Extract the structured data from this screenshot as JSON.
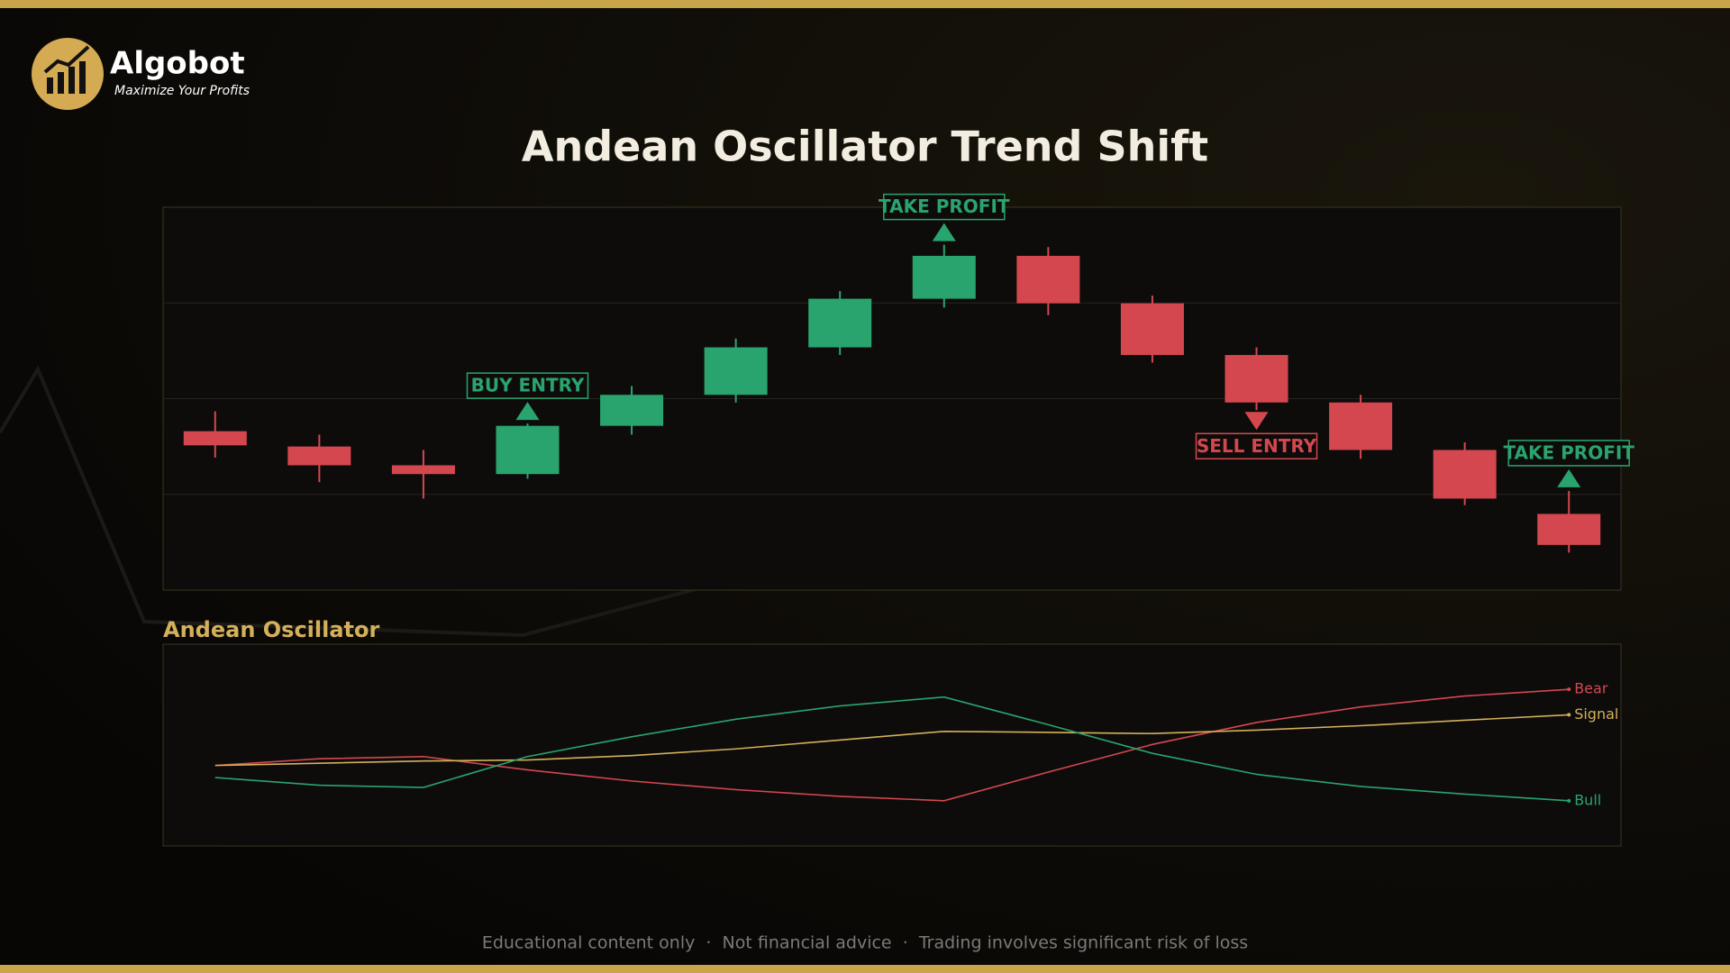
{
  "brand": {
    "name": "Algobot",
    "tagline": "Maximize Your Profits"
  },
  "title": "Andean Oscillator Trend Shift",
  "chart_data": [
    {
      "type": "candlestick",
      "ylim": [
        0,
        100
      ],
      "gridlines": [
        25,
        50,
        75
      ],
      "up_color": "#2aa46e",
      "down_color": "#d4474f",
      "open": [
        41.5,
        37.5,
        32.6,
        30.3,
        42.9,
        51.0,
        63.4,
        76.1,
        87.3,
        74.9,
        61.4,
        49.0,
        36.6,
        19.9
      ],
      "close": [
        37.8,
        32.6,
        30.3,
        42.9,
        51.0,
        63.4,
        76.1,
        87.3,
        74.9,
        61.4,
        49.0,
        36.6,
        23.9,
        11.8
      ],
      "high": [
        46.7,
        40.6,
        36.6,
        43.5,
        53.3,
        65.7,
        78.1,
        90.2,
        89.6,
        76.9,
        63.4,
        51.0,
        38.6,
        25.9
      ],
      "low": [
        34.6,
        28.2,
        23.9,
        29.1,
        40.6,
        49.0,
        61.4,
        73.8,
        71.8,
        59.4,
        47.0,
        34.3,
        22.2,
        9.8
      ],
      "annotations": [
        {
          "text": "BUY ENTRY",
          "at": 3,
          "side": "above",
          "color": "#2aa46e"
        },
        {
          "text": "TAKE PROFIT",
          "at": 7,
          "side": "above",
          "color": "#2aa46e"
        },
        {
          "text": "SELL ENTRY",
          "at": 10,
          "side": "below",
          "color": "#d4474f"
        },
        {
          "text": "TAKE PROFIT",
          "at": 13,
          "side": "above",
          "color": "#2aa46e"
        }
      ]
    },
    {
      "type": "line",
      "title": "Andean Oscillator",
      "ylim": [
        0,
        100
      ],
      "series": [
        {
          "name": "Bear",
          "color": "#d4474f",
          "values": [
            39.9,
            43.2,
            44.3,
            37.7,
            32.2,
            27.9,
            24.6,
            22.4,
            36.6,
            50.3,
            61.2,
            68.9,
            74.3,
            77.6
          ]
        },
        {
          "name": "Signal",
          "color": "#d4b05a",
          "values": [
            39.9,
            41.0,
            42.1,
            42.6,
            44.8,
            48.1,
            52.5,
            56.8,
            56.3,
            55.7,
            57.4,
            59.6,
            62.3,
            65.0
          ]
        },
        {
          "name": "Bull",
          "color": "#2aa46e",
          "values": [
            33.9,
            30.1,
            29.0,
            44.3,
            54.1,
            62.8,
            69.4,
            73.8,
            60.1,
            45.9,
            35.5,
            29.5,
            25.7,
            22.4
          ]
        }
      ]
    }
  ],
  "footer": "Educational content only  ·  Not financial advice  ·  Trading involves significant risk of loss"
}
